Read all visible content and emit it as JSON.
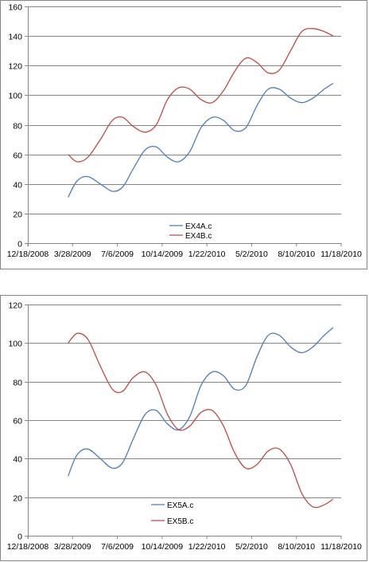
{
  "chart_data": [
    {
      "type": "line",
      "title": "",
      "xlabel": "",
      "ylabel": "",
      "x_tick_labels": [
        "12/18/2008",
        "3/28/2009",
        "7/6/2009",
        "10/14/2009",
        "1/22/2010",
        "5/2/2010",
        "8/10/2010",
        "11/18/2010"
      ],
      "xlim": [
        "2008-12-18",
        "2010-11-18"
      ],
      "ylim": [
        0,
        160
      ],
      "y_ticks": [
        0,
        20,
        40,
        60,
        80,
        100,
        120,
        140,
        160
      ],
      "grid": "horizontal major gridlines",
      "legend_position": "bottom-center inside plot",
      "x": [
        "2009-03-18",
        "2009-04-07",
        "2009-05-01",
        "2009-05-29",
        "2009-06-25",
        "2009-07-18",
        "2009-08-10",
        "2009-09-06",
        "2009-10-01",
        "2009-10-26",
        "2009-11-20",
        "2009-12-15",
        "2010-01-09",
        "2010-02-03",
        "2010-02-28",
        "2010-03-25",
        "2010-04-19",
        "2010-05-14",
        "2010-06-08",
        "2010-07-03",
        "2010-07-28",
        "2010-08-22",
        "2010-09-16",
        "2010-10-11",
        "2010-10-31"
      ],
      "series": [
        {
          "name": "EX4A.c",
          "color": "#4a7ebb",
          "values": [
            31,
            42,
            45,
            40,
            35,
            38,
            50,
            63,
            65,
            58,
            55,
            62,
            78,
            85,
            83,
            76,
            78,
            93,
            104,
            104,
            98,
            95,
            98,
            104,
            108
          ]
        },
        {
          "name": "EX4B.c",
          "color": "#be4b48",
          "values": [
            60,
            55,
            58,
            70,
            83,
            85,
            79,
            75,
            80,
            97,
            105,
            104,
            97,
            95,
            103,
            116,
            125,
            122,
            115,
            117,
            130,
            143,
            145,
            143,
            140
          ]
        }
      ]
    },
    {
      "type": "line",
      "title": "",
      "xlabel": "",
      "ylabel": "",
      "x_tick_labels": [
        "12/18/2008",
        "3/28/2009",
        "7/6/2009",
        "10/14/2009",
        "1/22/2010",
        "5/2/2010",
        "8/10/2010",
        "11/18/2010"
      ],
      "xlim": [
        "2008-12-18",
        "2010-11-18"
      ],
      "ylim": [
        0,
        120
      ],
      "y_ticks": [
        0,
        20,
        40,
        60,
        80,
        100,
        120
      ],
      "grid": "horizontal major gridlines",
      "legend_position": "bottom-center inside plot",
      "x": [
        "2009-03-18",
        "2009-04-07",
        "2009-05-01",
        "2009-05-29",
        "2009-06-25",
        "2009-07-18",
        "2009-08-10",
        "2009-09-06",
        "2009-10-01",
        "2009-10-26",
        "2009-11-20",
        "2009-12-15",
        "2010-01-09",
        "2010-02-03",
        "2010-02-28",
        "2010-03-25",
        "2010-04-19",
        "2010-05-14",
        "2010-06-08",
        "2010-07-03",
        "2010-07-28",
        "2010-08-22",
        "2010-09-16",
        "2010-10-11",
        "2010-10-31"
      ],
      "series": [
        {
          "name": "EX5A.c",
          "color": "#4a7ebb",
          "values": [
            31,
            42,
            45,
            40,
            35,
            38,
            50,
            63,
            65,
            58,
            55,
            62,
            78,
            85,
            83,
            76,
            78,
            93,
            104,
            104,
            98,
            95,
            98,
            104,
            108
          ]
        },
        {
          "name": "EX5B.c",
          "color": "#be4b48",
          "values": [
            100,
            105,
            102,
            88,
            76,
            75,
            82,
            85,
            78,
            63,
            55,
            57,
            64,
            65,
            57,
            43,
            35,
            37,
            44,
            45,
            37,
            22,
            15,
            16,
            19
          ]
        }
      ]
    }
  ]
}
